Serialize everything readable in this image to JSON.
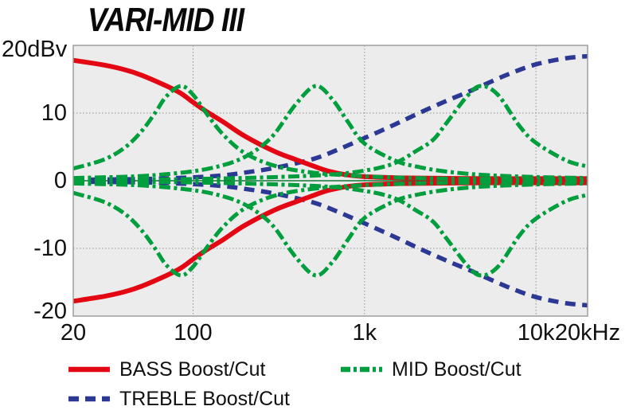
{
  "chart_data": {
    "type": "line",
    "title": "VARI-MID III",
    "x_scale": "log",
    "x_axis": {
      "range_hz": [
        20,
        20000
      ],
      "ticks": [
        {
          "label": "20",
          "freq": 20
        },
        {
          "label": "100",
          "freq": 100
        },
        {
          "label": "1k",
          "freq": 1000
        },
        {
          "label": "10k",
          "freq": 10000
        },
        {
          "label": "20kHz",
          "freq": 20000
        }
      ],
      "gridline_freqs_hz": [
        100,
        1000,
        10000
      ]
    },
    "y_axis": {
      "top_label": "20dBv",
      "range_db": [
        -20,
        20
      ],
      "ticks": [
        {
          "label": "10",
          "value": 10
        },
        {
          "label": "0",
          "value": 0
        },
        {
          "label": "-10",
          "value": -10
        },
        {
          "label": "-20",
          "value": -20
        }
      ],
      "gridline_values_db": [
        10,
        -10
      ],
      "zero_line_db": 0
    },
    "colors": {
      "bass": "#e30613",
      "mid": "#009e3d",
      "treble": "#2b3894",
      "plot_background": "#ececec",
      "plot_border": "#9e9e9e",
      "gridline": "#8f8f8f",
      "zero_line": "#0f7a33",
      "text": "#111111"
    },
    "legend": [
      {
        "label": "BASS Boost/Cut",
        "color_key": "bass",
        "line_style": "solid"
      },
      {
        "label": "MID Boost/Cut",
        "color_key": "mid",
        "line_style": "dashdot"
      },
      {
        "label": "TREBLE Boost/Cut",
        "color_key": "treble",
        "line_style": "dashed"
      }
    ],
    "series": [
      {
        "id": "treble-boost",
        "group": "TREBLE Boost/Cut",
        "color_key": "treble",
        "line_style": "dashed",
        "points_hz_db": [
          [
            20,
            0.15
          ],
          [
            50,
            0.25
          ],
          [
            100,
            0.5
          ],
          [
            150,
            0.8
          ],
          [
            200,
            1.2
          ],
          [
            300,
            1.9
          ],
          [
            500,
            3.2
          ],
          [
            700,
            4.6
          ],
          [
            1000,
            6.3
          ],
          [
            1500,
            8.3
          ],
          [
            2000,
            9.8
          ],
          [
            3000,
            11.8
          ],
          [
            4000,
            13.1
          ],
          [
            5000,
            14.2
          ],
          [
            7000,
            15.8
          ],
          [
            10000,
            17.2
          ],
          [
            15000,
            18.1
          ],
          [
            20000,
            18.4
          ]
        ]
      },
      {
        "id": "treble-cut",
        "group": "TREBLE Boost/Cut",
        "color_key": "treble",
        "line_style": "dashed",
        "points_hz_db": [
          [
            20,
            -0.15
          ],
          [
            50,
            -0.25
          ],
          [
            100,
            -0.5
          ],
          [
            150,
            -0.8
          ],
          [
            200,
            -1.2
          ],
          [
            300,
            -1.9
          ],
          [
            500,
            -3.2
          ],
          [
            700,
            -4.6
          ],
          [
            1000,
            -6.3
          ],
          [
            1500,
            -8.3
          ],
          [
            2000,
            -9.8
          ],
          [
            3000,
            -11.8
          ],
          [
            4000,
            -13.1
          ],
          [
            5000,
            -14.2
          ],
          [
            7000,
            -15.8
          ],
          [
            10000,
            -17.2
          ],
          [
            15000,
            -18.1
          ],
          [
            20000,
            -18.4
          ]
        ]
      },
      {
        "id": "bass-boost",
        "group": "BASS Boost/Cut",
        "color_key": "bass",
        "line_style": "solid",
        "points_hz_db": [
          [
            20,
            17.8
          ],
          [
            30,
            17.1
          ],
          [
            40,
            16.4
          ],
          [
            50,
            15.6
          ],
          [
            70,
            14.0
          ],
          [
            85,
            12.9
          ],
          [
            100,
            11.6
          ],
          [
            120,
            10.2
          ],
          [
            150,
            8.7
          ],
          [
            200,
            6.6
          ],
          [
            300,
            4.3
          ],
          [
            400,
            3.1
          ],
          [
            500,
            2.2
          ],
          [
            600,
            1.5
          ],
          [
            700,
            1.1
          ],
          [
            800,
            0.85
          ],
          [
            1000,
            0.6
          ],
          [
            1500,
            0.45
          ],
          [
            2000,
            0.4
          ],
          [
            5000,
            0.3
          ],
          [
            10000,
            0.3
          ],
          [
            20000,
            0.3
          ]
        ]
      },
      {
        "id": "bass-cut",
        "group": "BASS Boost/Cut",
        "color_key": "bass",
        "line_style": "solid",
        "points_hz_db": [
          [
            20,
            -17.8
          ],
          [
            30,
            -17.1
          ],
          [
            40,
            -16.4
          ],
          [
            50,
            -15.6
          ],
          [
            70,
            -14.0
          ],
          [
            85,
            -12.9
          ],
          [
            100,
            -11.6
          ],
          [
            120,
            -10.2
          ],
          [
            150,
            -8.7
          ],
          [
            200,
            -6.6
          ],
          [
            300,
            -4.3
          ],
          [
            400,
            -3.1
          ],
          [
            500,
            -2.2
          ],
          [
            600,
            -1.5
          ],
          [
            700,
            -1.1
          ],
          [
            800,
            -0.85
          ],
          [
            1000,
            -0.6
          ],
          [
            1500,
            -0.45
          ],
          [
            2000,
            -0.4
          ],
          [
            5000,
            -0.3
          ],
          [
            10000,
            -0.3
          ],
          [
            20000,
            -0.3
          ]
        ]
      },
      {
        "id": "mid-low-boost",
        "group": "MID Boost/Cut",
        "color_key": "mid",
        "line_style": "dashdot",
        "points_hz_db": [
          [
            20,
            1.8
          ],
          [
            30,
            3.1
          ],
          [
            40,
            4.9
          ],
          [
            50,
            7.3
          ],
          [
            60,
            10.0
          ],
          [
            70,
            12.5
          ],
          [
            85,
            14.0
          ],
          [
            100,
            12.7
          ],
          [
            120,
            9.9
          ],
          [
            150,
            6.8
          ],
          [
            200,
            4.1
          ],
          [
            300,
            2.2
          ],
          [
            500,
            1.2
          ],
          [
            1000,
            0.66
          ],
          [
            2000,
            0.4
          ],
          [
            5000,
            0.25
          ],
          [
            10000,
            0.2
          ],
          [
            20000,
            0.15
          ]
        ]
      },
      {
        "id": "mid-low-cut",
        "group": "MID Boost/Cut",
        "color_key": "mid",
        "line_style": "dashdot",
        "points_hz_db": [
          [
            20,
            -1.8
          ],
          [
            30,
            -3.1
          ],
          [
            40,
            -4.9
          ],
          [
            50,
            -7.3
          ],
          [
            60,
            -10.0
          ],
          [
            70,
            -12.5
          ],
          [
            85,
            -14.0
          ],
          [
            100,
            -12.7
          ],
          [
            120,
            -9.9
          ],
          [
            150,
            -6.8
          ],
          [
            200,
            -4.1
          ],
          [
            300,
            -2.2
          ],
          [
            500,
            -1.2
          ],
          [
            1000,
            -0.66
          ],
          [
            2000,
            -0.4
          ],
          [
            5000,
            -0.25
          ],
          [
            10000,
            -0.2
          ],
          [
            20000,
            -0.15
          ]
        ]
      },
      {
        "id": "mid-mid-boost",
        "group": "MID Boost/Cut",
        "color_key": "mid",
        "line_style": "dashdot",
        "points_hz_db": [
          [
            20,
            0.4
          ],
          [
            50,
            0.7
          ],
          [
            100,
            1.4
          ],
          [
            150,
            2.3
          ],
          [
            200,
            3.5
          ],
          [
            250,
            5.1
          ],
          [
            300,
            7.0
          ],
          [
            400,
            11.4
          ],
          [
            520,
            14.0
          ],
          [
            650,
            12.0
          ],
          [
            800,
            8.7
          ],
          [
            1000,
            5.5
          ],
          [
            1500,
            3.0
          ],
          [
            2000,
            2.1
          ],
          [
            3000,
            1.35
          ],
          [
            5000,
            0.85
          ],
          [
            10000,
            0.55
          ],
          [
            20000,
            0.4
          ]
        ]
      },
      {
        "id": "mid-mid-cut",
        "group": "MID Boost/Cut",
        "color_key": "mid",
        "line_style": "dashdot",
        "points_hz_db": [
          [
            20,
            -0.4
          ],
          [
            50,
            -0.7
          ],
          [
            100,
            -1.4
          ],
          [
            150,
            -2.3
          ],
          [
            200,
            -3.5
          ],
          [
            250,
            -5.1
          ],
          [
            300,
            -7.0
          ],
          [
            400,
            -11.4
          ],
          [
            520,
            -14.0
          ],
          [
            650,
            -12.0
          ],
          [
            800,
            -8.7
          ],
          [
            1000,
            -5.5
          ],
          [
            1500,
            -3.0
          ],
          [
            2000,
            -2.1
          ],
          [
            3000,
            -1.35
          ],
          [
            5000,
            -0.85
          ],
          [
            10000,
            -0.55
          ],
          [
            20000,
            -0.4
          ]
        ]
      },
      {
        "id": "mid-high-boost",
        "group": "MID Boost/Cut",
        "color_key": "mid",
        "line_style": "dashdot",
        "points_hz_db": [
          [
            20,
            0.15
          ],
          [
            100,
            0.25
          ],
          [
            500,
            0.75
          ],
          [
            1000,
            1.5
          ],
          [
            1500,
            2.6
          ],
          [
            2000,
            4.4
          ],
          [
            2500,
            6.0
          ],
          [
            3000,
            8.5
          ],
          [
            4000,
            12.6
          ],
          [
            4800,
            14.0
          ],
          [
            6000,
            12.7
          ],
          [
            8000,
            8.1
          ],
          [
            10000,
            5.6
          ],
          [
            15000,
            3.0
          ],
          [
            20000,
            2.1
          ]
        ]
      },
      {
        "id": "mid-high-cut",
        "group": "MID Boost/Cut",
        "color_key": "mid",
        "line_style": "dashdot",
        "points_hz_db": [
          [
            20,
            -0.15
          ],
          [
            100,
            -0.25
          ],
          [
            500,
            -0.75
          ],
          [
            1000,
            -1.5
          ],
          [
            1500,
            -2.6
          ],
          [
            2000,
            -4.4
          ],
          [
            2500,
            -6.0
          ],
          [
            3000,
            -8.5
          ],
          [
            4000,
            -12.6
          ],
          [
            4800,
            -14.0
          ],
          [
            6000,
            -12.7
          ],
          [
            8000,
            -8.1
          ],
          [
            10000,
            -5.6
          ],
          [
            15000,
            -3.0
          ],
          [
            20000,
            -2.1
          ]
        ]
      }
    ]
  }
}
